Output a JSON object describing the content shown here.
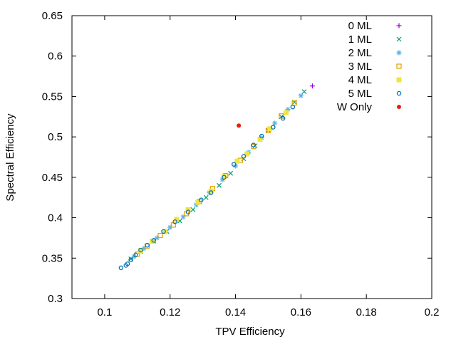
{
  "chart_data": {
    "type": "scatter",
    "title": "",
    "xlabel": "TPV Efficiency",
    "ylabel": "Spectral Efficiency",
    "xlim": [
      0.09,
      0.2
    ],
    "ylim": [
      0.3,
      0.65
    ],
    "xticks": [
      0.1,
      0.12,
      0.14,
      0.16,
      0.18,
      0.2
    ],
    "yticks": [
      0.3,
      0.35,
      0.4,
      0.45,
      0.5,
      0.55,
      0.6,
      0.65
    ],
    "xtick_labels": [
      "0.1",
      "0.12",
      "0.14",
      "0.16",
      "0.18",
      "0.2"
    ],
    "ytick_labels": [
      "0.3",
      "0.35",
      "0.4",
      "0.45",
      "0.5",
      "0.55",
      "0.6",
      "0.65"
    ],
    "grid": false,
    "legend_position": "top-right",
    "series": [
      {
        "name": "0 ML",
        "marker": "plus",
        "color": "#9400d3",
        "points": [
          [
            0.1635,
            0.563
          ]
        ]
      },
      {
        "name": "1 ML",
        "marker": "cross",
        "color": "#009e73",
        "points": [
          [
            0.161,
            0.556
          ],
          [
            0.158,
            0.543
          ],
          [
            0.154,
            0.525
          ],
          [
            0.15,
            0.508
          ],
          [
            0.146,
            0.489
          ],
          [
            0.1425,
            0.473
          ],
          [
            0.1385,
            0.455
          ],
          [
            0.135,
            0.44
          ],
          [
            0.131,
            0.425
          ],
          [
            0.127,
            0.41
          ],
          [
            0.123,
            0.396
          ],
          [
            0.119,
            0.383
          ],
          [
            0.115,
            0.371
          ],
          [
            0.111,
            0.358
          ],
          [
            0.108,
            0.349
          ]
        ]
      },
      {
        "name": "2 ML",
        "marker": "star",
        "color": "#56b4e9",
        "points": [
          [
            0.16,
            0.551
          ],
          [
            0.156,
            0.534
          ],
          [
            0.152,
            0.517
          ],
          [
            0.148,
            0.499
          ],
          [
            0.144,
            0.481
          ],
          [
            0.14,
            0.464
          ],
          [
            0.136,
            0.447
          ],
          [
            0.132,
            0.431
          ],
          [
            0.128,
            0.416
          ],
          [
            0.124,
            0.401
          ],
          [
            0.12,
            0.388
          ],
          [
            0.116,
            0.375
          ],
          [
            0.112,
            0.362
          ],
          [
            0.109,
            0.352
          ]
        ]
      },
      {
        "name": "3 ML",
        "marker": "square-open",
        "color": "#e69f00",
        "points": [
          [
            0.158,
            0.542
          ],
          [
            0.154,
            0.526
          ],
          [
            0.15,
            0.508
          ],
          [
            0.1455,
            0.488
          ],
          [
            0.1415,
            0.471
          ],
          [
            0.137,
            0.452
          ],
          [
            0.133,
            0.436
          ],
          [
            0.129,
            0.42
          ],
          [
            0.125,
            0.405
          ],
          [
            0.121,
            0.391
          ],
          [
            0.117,
            0.378
          ],
          [
            0.113,
            0.365
          ],
          [
            0.11,
            0.355
          ]
        ]
      },
      {
        "name": "4 ML",
        "marker": "square-filled",
        "color": "#f0e442",
        "points": [
          [
            0.1555,
            0.53
          ],
          [
            0.1505,
            0.51
          ],
          [
            0.1475,
            0.497
          ],
          [
            0.1435,
            0.479
          ],
          [
            0.1405,
            0.47
          ],
          [
            0.1365,
            0.451
          ],
          [
            0.1325,
            0.433
          ],
          [
            0.1285,
            0.419
          ],
          [
            0.1255,
            0.41
          ],
          [
            0.122,
            0.398
          ],
          [
            0.1185,
            0.383
          ],
          [
            0.1145,
            0.371
          ],
          [
            0.111,
            0.359
          ]
        ]
      },
      {
        "name": "5 ML",
        "marker": "circle-open",
        "color": "#0072b2",
        "points": [
          [
            0.1575,
            0.537
          ],
          [
            0.1545,
            0.523
          ],
          [
            0.1515,
            0.512
          ],
          [
            0.148,
            0.501
          ],
          [
            0.1455,
            0.49
          ],
          [
            0.1425,
            0.476
          ],
          [
            0.1395,
            0.466
          ],
          [
            0.1365,
            0.45
          ],
          [
            0.1325,
            0.431
          ],
          [
            0.1295,
            0.422
          ],
          [
            0.1255,
            0.407
          ],
          [
            0.1215,
            0.395
          ],
          [
            0.118,
            0.383
          ],
          [
            0.115,
            0.372
          ],
          [
            0.113,
            0.366
          ],
          [
            0.111,
            0.36
          ],
          [
            0.1095,
            0.354
          ],
          [
            0.108,
            0.348
          ],
          [
            0.107,
            0.343
          ],
          [
            0.1065,
            0.341
          ],
          [
            0.105,
            0.338
          ]
        ]
      },
      {
        "name": "W Only",
        "marker": "circle-filled",
        "color": "#e51e10",
        "points": [
          [
            0.141,
            0.514
          ]
        ]
      }
    ]
  }
}
